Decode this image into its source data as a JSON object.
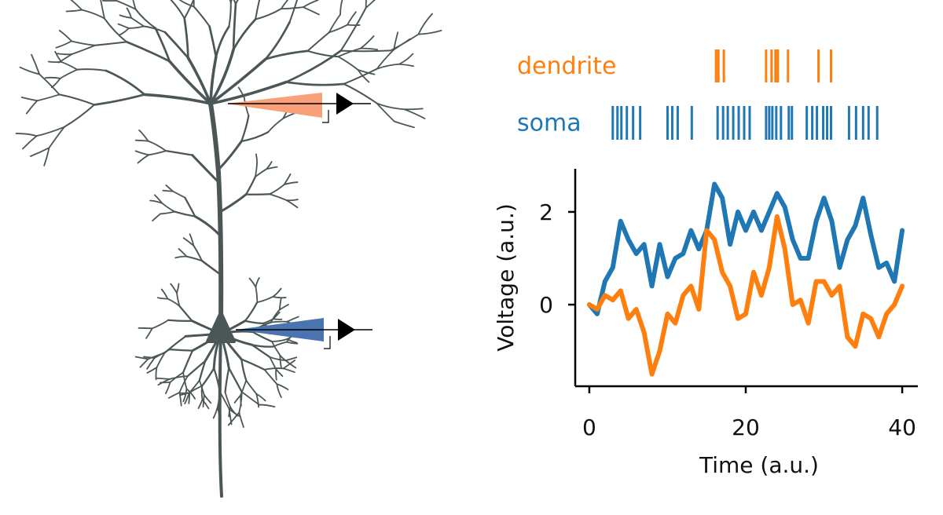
{
  "chart_data": {
    "type": "line",
    "x": [
      0,
      1,
      2,
      3,
      4,
      5,
      6,
      7,
      8,
      9,
      10,
      11,
      12,
      13,
      14,
      15,
      16,
      17,
      18,
      19,
      20,
      21,
      22,
      23,
      24,
      25,
      26,
      27,
      28,
      29,
      30,
      31,
      32,
      33,
      34,
      35,
      36,
      37,
      38,
      39,
      40
    ],
    "series": [
      {
        "name": "dendrite",
        "color": "#ff7f0e",
        "values": [
          0,
          -0.1,
          0.2,
          0.1,
          0.3,
          -0.3,
          -0.1,
          -0.6,
          -1.5,
          -1.0,
          -0.2,
          -0.4,
          0.2,
          0.4,
          -0.1,
          1.6,
          1.4,
          0.7,
          0.4,
          -0.3,
          -0.2,
          0.7,
          0.2,
          0.8,
          1.9,
          1.2,
          0.0,
          0.1,
          -0.4,
          0.5,
          0.5,
          0.2,
          0.4,
          -0.7,
          -0.9,
          -0.2,
          -0.3,
          -0.7,
          -0.2,
          0.0,
          0.4
        ],
        "spikes": [
          16.2,
          16.5,
          17.2,
          22.6,
          23.3,
          23.8,
          24.1,
          25.4,
          29.3,
          30.9
        ]
      },
      {
        "name": "soma",
        "color": "#1f77b4",
        "values": [
          0,
          -0.2,
          0.5,
          0.8,
          1.8,
          1.4,
          1.1,
          1.3,
          0.4,
          1.3,
          0.6,
          1.0,
          1.1,
          1.6,
          1.2,
          1.6,
          2.6,
          2.3,
          1.3,
          2.0,
          1.6,
          2.0,
          1.6,
          2.0,
          2.4,
          2.1,
          1.4,
          1.0,
          1.0,
          1.8,
          2.3,
          1.8,
          0.8,
          1.4,
          1.7,
          2.3,
          1.5,
          0.8,
          0.9,
          0.5,
          1.6
        ],
        "spikes": [
          3.0,
          3.6,
          4.1,
          4.8,
          5.6,
          6.5,
          10.0,
          10.6,
          11.3,
          13.1,
          16.4,
          17.1,
          17.7,
          18.4,
          19.1,
          19.8,
          20.5,
          22.6,
          23.0,
          23.4,
          23.9,
          24.5,
          25.5,
          25.9,
          27.8,
          28.5,
          29.1,
          29.9,
          30.4,
          30.9,
          33.2,
          34.1,
          35.0,
          35.7,
          36.8
        ]
      }
    ],
    "xlabel": "Time (a.u.)",
    "ylabel": "Voltage (a.u.)",
    "xlim": [
      -1.8,
      42
    ],
    "ylim": [
      -1.76,
      2.93
    ],
    "xticks": [
      0,
      20,
      40
    ],
    "yticks": [
      0,
      2
    ]
  }
}
